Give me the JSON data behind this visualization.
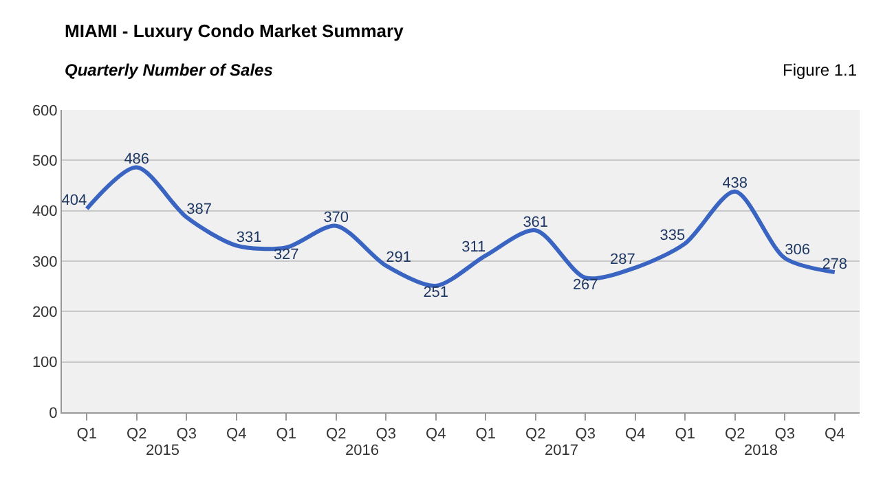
{
  "chart_data": {
    "type": "line",
    "title": "MIAMI - Luxury Condo Market Summary",
    "subtitle": "Quarterly Number of Sales",
    "categories": [
      "Q1",
      "Q2",
      "Q3",
      "Q4",
      "Q1",
      "Q2",
      "Q3",
      "Q4",
      "Q1",
      "Q2",
      "Q3",
      "Q4",
      "Q1",
      "Q2",
      "Q3",
      "Q4"
    ],
    "series": [
      {
        "color": "#3a64c2",
        "values": [
          404,
          486,
          387,
          331,
          327,
          370,
          291,
          251,
          311,
          361,
          267,
          287,
          335,
          438,
          306,
          278
        ]
      }
    ],
    "annotations": [
      "Figure 1.1",
      "2015",
      "2016",
      "2017",
      "2018"
    ],
    "ylim": [
      0,
      600
    ],
    "yticks": [
      0,
      100,
      200,
      300,
      400,
      500,
      600
    ],
    "grid": "y",
    "data_labels": true,
    "marker": "none",
    "line_style": "solid"
  }
}
